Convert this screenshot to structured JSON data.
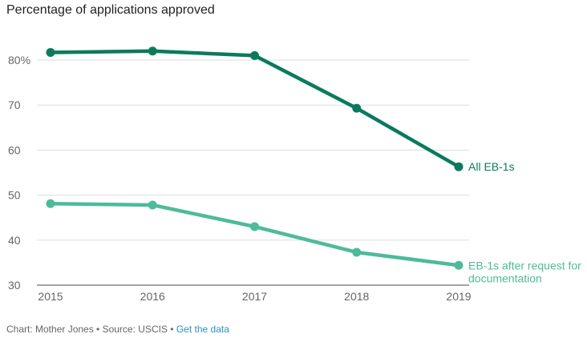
{
  "chart_data": {
    "type": "line",
    "title": "Percentage of applications approved",
    "x": [
      "2015",
      "2016",
      "2017",
      "2018",
      "2019"
    ],
    "ylim": [
      30,
      85
    ],
    "yticks": [
      {
        "value": 80,
        "label": "80%"
      },
      {
        "value": 70,
        "label": "70"
      },
      {
        "value": 60,
        "label": "60"
      },
      {
        "value": 50,
        "label": "50"
      },
      {
        "value": 40,
        "label": "40"
      },
      {
        "value": 30,
        "label": "30"
      }
    ],
    "grid": true,
    "series": [
      {
        "name": "All EB-1s",
        "label_lines": [
          "All EB-1s"
        ],
        "color": "#0b7a5e",
        "values": [
          81.7,
          82.0,
          81.0,
          69.3,
          56.3
        ]
      },
      {
        "name": "EB-1s after request for documentation",
        "label_lines": [
          "EB-1s after request for",
          "documentation"
        ],
        "color": "#4dbb9a",
        "values": [
          48.1,
          47.8,
          43.0,
          37.3,
          34.4
        ]
      }
    ]
  },
  "footer": {
    "text": "Chart: Mother Jones • Source: USCIS • ",
    "link": "Get the data"
  }
}
